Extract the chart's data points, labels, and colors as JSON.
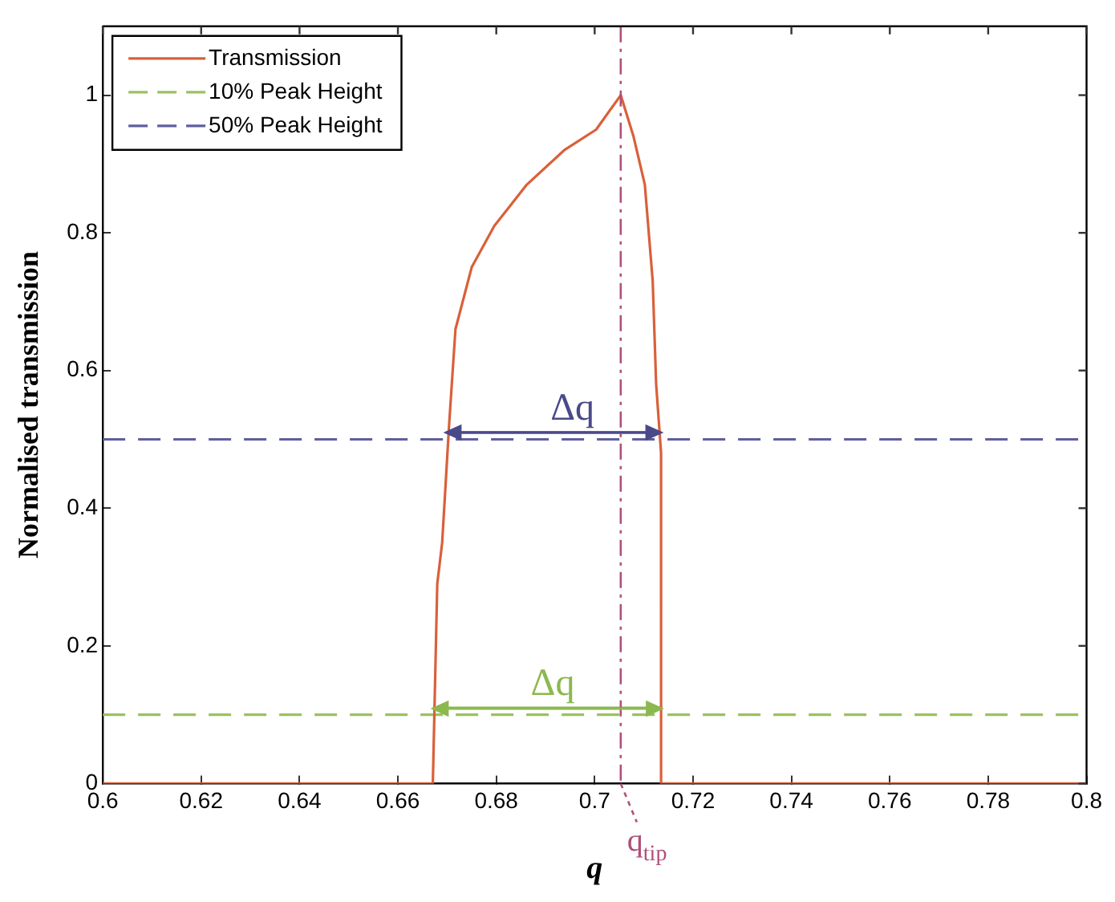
{
  "chart_data": {
    "type": "line",
    "xlabel": "q",
    "ylabel": "Normalised transmission",
    "legend": "top left",
    "marker": "none",
    "grid": false,
    "xlim": [
      0.6,
      0.8
    ],
    "xticks": [
      0.6,
      0.62,
      0.64,
      0.66,
      0.68,
      0.7,
      0.72,
      0.74,
      0.76,
      0.78,
      0.8
    ],
    "ylim": [
      0,
      1.1
    ],
    "yticks": [
      0,
      0.2,
      0.4,
      0.6,
      0.8,
      1
    ],
    "series": [
      {
        "name": "Transmission",
        "color": "#d9603a",
        "line_style": "solid",
        "x": [
          0.6,
          0.6671,
          0.668,
          0.669,
          0.6704,
          0.6717,
          0.675,
          0.6796,
          0.6862,
          0.6938,
          0.7003,
          0.7053,
          0.7079,
          0.7102,
          0.7118,
          0.7125,
          0.7132,
          0.7135,
          0.7135,
          0.8
        ],
        "values": [
          0,
          0,
          0.29,
          0.35,
          0.52,
          0.66,
          0.75,
          0.81,
          0.87,
          0.92,
          0.95,
          1,
          0.94,
          0.87,
          0.73,
          0.58,
          0.51,
          0.48,
          0,
          0
        ]
      },
      {
        "name": "10% Peak Height",
        "color": "#9cc060",
        "line_style": "dashed",
        "x": [
          0.6,
          0.8
        ],
        "values": [
          0.1,
          0.1
        ]
      },
      {
        "name": "50% Peak Height",
        "color": "#5f5f9f",
        "line_style": "dashed",
        "x": [
          0.6,
          0.8
        ],
        "values": [
          0.5,
          0.5
        ]
      },
      {
        "color": "#4a4a8a",
        "line_style": "solid",
        "x": [
          0.6698,
          0.7135
        ],
        "values": [
          0.51,
          0.51
        ]
      },
      {
        "color": "#8cb850",
        "line_style": "solid",
        "x": [
          0.6671,
          0.7135
        ],
        "values": [
          0.11,
          0.11
        ]
      }
    ],
    "ref_lines": [
      {
        "axis": "x",
        "value": 0.7053,
        "label": "q$_{tip}$",
        "color": "#b0507a",
        "line_style": "dashdot"
      }
    ],
    "annotations": [
      {
        "text": "Δq",
        "x": 0.691,
        "y": 0.51
      },
      {
        "text": "Δq",
        "x": 0.687,
        "y": 0.11
      }
    ]
  }
}
